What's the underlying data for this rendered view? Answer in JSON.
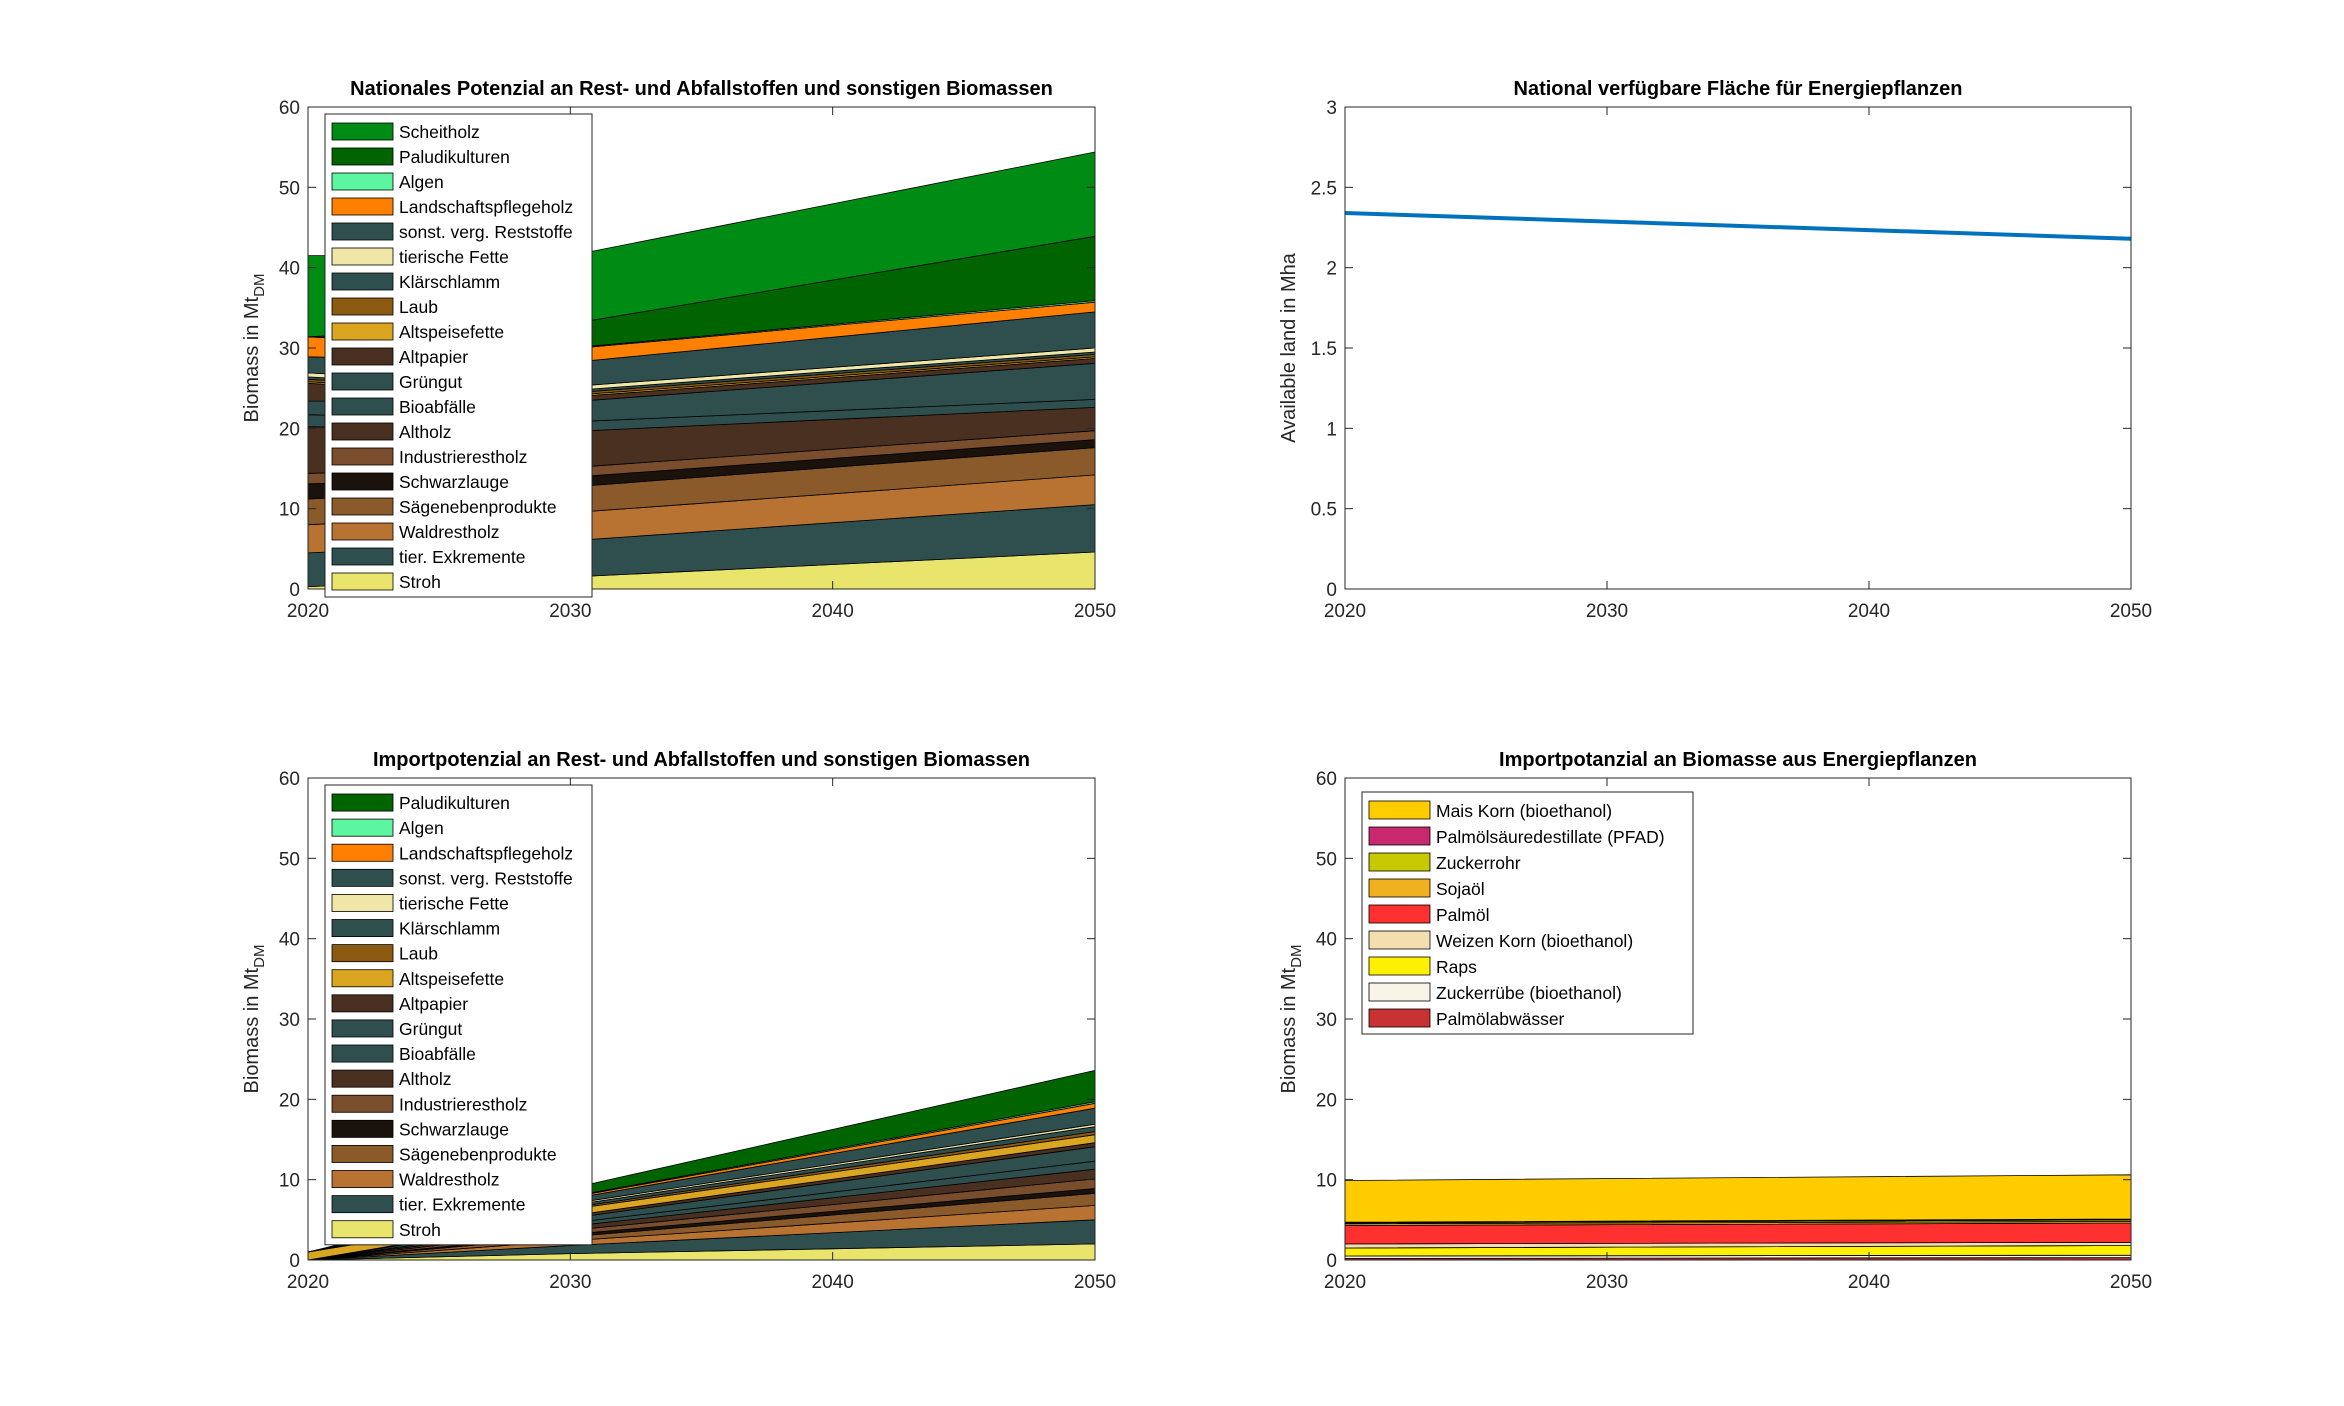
{
  "chart_data": [
    {
      "id": "c1",
      "type": "area",
      "stacked": true,
      "title": "Nationales Potenzial an Rest- und Abfallstoffen und sonstigen Biomassen",
      "ylabel": "Biomass in Mt",
      "ylabel_sub": "DM",
      "x": [
        2020,
        2030,
        2050
      ],
      "xticks": [
        2020,
        2030,
        2040,
        2050
      ],
      "xlim": [
        2020,
        2050
      ],
      "ylim": [
        0,
        60
      ],
      "yticks": [
        0,
        10,
        20,
        30,
        40,
        50,
        60
      ],
      "legend_position": "top-left",
      "series": [
        {
          "name": "Stroh",
          "color": "#e8e46c",
          "values": [
            0.3,
            1.5,
            4.6
          ]
        },
        {
          "name": "tier. Exkremente",
          "color": "#2f4f4f",
          "values": [
            4.2,
            4.5,
            5.9
          ]
        },
        {
          "name": "Waldrestholz",
          "color": "#b87333",
          "values": [
            3.5,
            3.5,
            3.7
          ]
        },
        {
          "name": "Sägenebenprodukte",
          "color": "#8b5a2b",
          "values": [
            3.2,
            3.2,
            3.4
          ]
        },
        {
          "name": "Schwarzlauge",
          "color": "#1a120b",
          "values": [
            1.9,
            1.2,
            1.0
          ]
        },
        {
          "name": "Industrierestholz",
          "color": "#7a4e2d",
          "values": [
            1.3,
            1.2,
            1.1
          ]
        },
        {
          "name": "Altholz",
          "color": "#4a3020",
          "values": [
            5.8,
            4.5,
            2.9
          ]
        },
        {
          "name": "Bioabfälle",
          "color": "#2f4f4f",
          "values": [
            1.5,
            1.2,
            1.0
          ]
        },
        {
          "name": "Grüngut",
          "color": "#2f4f4f",
          "values": [
            1.7,
            2.5,
            4.5
          ]
        },
        {
          "name": "Altpapier",
          "color": "#4a3020",
          "values": [
            2.2,
            0.6,
            0.6
          ]
        },
        {
          "name": "Altspeisefette",
          "color": "#daa520",
          "values": [
            0.2,
            0.2,
            0.2
          ]
        },
        {
          "name": "Laub",
          "color": "#8b5a10",
          "values": [
            0.3,
            0.3,
            0.3
          ]
        },
        {
          "name": "Klärschlamm",
          "color": "#2f4f4f",
          "values": [
            0.3,
            0.3,
            0.3
          ]
        },
        {
          "name": "tierische Fette",
          "color": "#f0e6a8",
          "values": [
            0.5,
            0.5,
            0.5
          ]
        },
        {
          "name": "sonst. verg. Reststoffe",
          "color": "#2f4f4f",
          "values": [
            2.0,
            3.0,
            4.5
          ]
        },
        {
          "name": "Landschaftspflegeholz",
          "color": "#ff8000",
          "values": [
            2.5,
            1.7,
            1.2
          ]
        },
        {
          "name": "Algen",
          "color": "#5cf5a0",
          "values": [
            0.0,
            0.1,
            0.2
          ]
        },
        {
          "name": "Paludikulturen",
          "color": "#006400",
          "values": [
            0.0,
            3.0,
            8.0
          ]
        },
        {
          "name": "Scheitholz",
          "color": "#008c14",
          "values": [
            10.1,
            8.5,
            10.5
          ]
        }
      ]
    },
    {
      "id": "c2",
      "type": "line",
      "title": "National verfügbare Fläche für Energiepflanzen",
      "ylabel": "Available land in Mha",
      "x": [
        2020,
        2050
      ],
      "xticks": [
        2020,
        2030,
        2040,
        2050
      ],
      "xlim": [
        2020,
        2050
      ],
      "ylim": [
        0,
        3
      ],
      "yticks": [
        0,
        0.5,
        1,
        1.5,
        2,
        2.5,
        3
      ],
      "series": [
        {
          "name": "",
          "color": "#0072bd",
          "values": [
            2.34,
            2.18
          ]
        }
      ]
    },
    {
      "id": "c3",
      "type": "area",
      "stacked": true,
      "title": "Importpotenzial an Rest- und Abfallstoffen und sonstigen Biomassen",
      "ylabel": "Biomass in Mt",
      "ylabel_sub": "DM",
      "x": [
        2020,
        2030,
        2050
      ],
      "xticks": [
        2020,
        2030,
        2040,
        2050
      ],
      "xlim": [
        2020,
        2050
      ],
      "ylim": [
        0,
        60
      ],
      "yticks": [
        0,
        10,
        20,
        30,
        40,
        50,
        60
      ],
      "legend_position": "top-left",
      "series": [
        {
          "name": "Stroh",
          "color": "#e8e46c",
          "values": [
            0.0,
            0.8,
            2.0
          ]
        },
        {
          "name": "tier. Exkremente",
          "color": "#2f4f4f",
          "values": [
            0.0,
            1.0,
            3.0
          ]
        },
        {
          "name": "Waldrestholz",
          "color": "#b87333",
          "values": [
            0.0,
            0.6,
            1.8
          ]
        },
        {
          "name": "Sägenebenprodukte",
          "color": "#8b5a2b",
          "values": [
            0.0,
            0.5,
            1.5
          ]
        },
        {
          "name": "Schwarzlauge",
          "color": "#1a120b",
          "values": [
            0.0,
            0.3,
            0.6
          ]
        },
        {
          "name": "Industrierestholz",
          "color": "#7a4e2d",
          "values": [
            0.0,
            0.5,
            1.2
          ]
        },
        {
          "name": "Altholz",
          "color": "#4a3020",
          "values": [
            0.0,
            0.5,
            1.2
          ]
        },
        {
          "name": "Bioabfälle",
          "color": "#2f4f4f",
          "values": [
            0.0,
            0.4,
            1.0
          ]
        },
        {
          "name": "Grüngut",
          "color": "#2f4f4f",
          "values": [
            0.0,
            0.6,
            1.8
          ]
        },
        {
          "name": "Altpapier",
          "color": "#4a3020",
          "values": [
            0.0,
            0.3,
            0.5
          ]
        },
        {
          "name": "Altspeisefette",
          "color": "#daa520",
          "values": [
            1.0,
            0.8,
            1.0
          ]
        },
        {
          "name": "Laub",
          "color": "#8b5a10",
          "values": [
            0.0,
            0.2,
            0.4
          ]
        },
        {
          "name": "Klärschlamm",
          "color": "#2f4f4f",
          "values": [
            0.0,
            0.3,
            0.6
          ]
        },
        {
          "name": "tierische Fette",
          "color": "#f0e6a8",
          "values": [
            0.0,
            0.2,
            0.3
          ]
        },
        {
          "name": "sonst. verg. Reststoffe",
          "color": "#2f4f4f",
          "values": [
            0.0,
            0.6,
            2.0
          ]
        },
        {
          "name": "Landschaftspflegeholz",
          "color": "#ff8000",
          "values": [
            0.0,
            0.2,
            0.6
          ]
        },
        {
          "name": "Algen",
          "color": "#5cf5a0",
          "values": [
            0.0,
            0.1,
            0.2
          ]
        },
        {
          "name": "Paludikulturen",
          "color": "#006400",
          "values": [
            0.0,
            1.0,
            3.9
          ]
        }
      ]
    },
    {
      "id": "c4",
      "type": "area",
      "stacked": true,
      "title": "Importpotanzial an Biomasse aus Energiepflanzen",
      "ylabel": "Biomass in Mt",
      "ylabel_sub": "DM",
      "x": [
        2020,
        2050
      ],
      "xticks": [
        2020,
        2030,
        2040,
        2050
      ],
      "xlim": [
        2020,
        2050
      ],
      "ylim": [
        0,
        60
      ],
      "yticks": [
        0,
        10,
        20,
        30,
        40,
        50,
        60
      ],
      "legend_position": "top-left",
      "series": [
        {
          "name": "Palmölabwässer",
          "color": "#c83232",
          "values": [
            0.2,
            0.3
          ]
        },
        {
          "name": "Zuckerrübe (bioethanol)",
          "color": "#f8f4e8",
          "values": [
            0.3,
            0.3
          ]
        },
        {
          "name": "Raps",
          "color": "#ffef00",
          "values": [
            1.0,
            1.2
          ]
        },
        {
          "name": "Weizen Korn (bioethanol)",
          "color": "#f3deb0",
          "values": [
            0.5,
            0.4
          ]
        },
        {
          "name": "Palmöl",
          "color": "#ff3030",
          "values": [
            2.3,
            2.4
          ]
        },
        {
          "name": "Sojaöl",
          "color": "#f0b020",
          "values": [
            0.2,
            0.2
          ]
        },
        {
          "name": "Zuckerrohr",
          "color": "#c8c800",
          "values": [
            0.1,
            0.2
          ]
        },
        {
          "name": "Palmölsäuredestillate (PFAD)",
          "color": "#c8286e",
          "values": [
            0.1,
            0.1
          ]
        },
        {
          "name": "Mais Korn (bioethanol)",
          "color": "#ffcc00",
          "values": [
            5.2,
            5.5
          ]
        }
      ]
    }
  ]
}
